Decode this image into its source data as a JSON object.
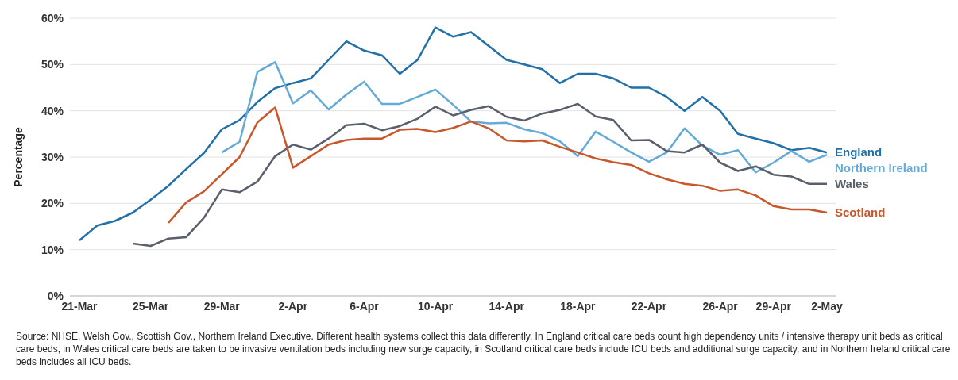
{
  "chart_data": {
    "type": "line",
    "ylabel": "Percentage",
    "categories": [
      "21-Mar",
      null,
      null,
      null,
      "25-Mar",
      null,
      null,
      null,
      "29-Mar",
      null,
      null,
      null,
      "2-Apr",
      null,
      null,
      null,
      "6-Apr",
      null,
      null,
      null,
      "10-Apr",
      null,
      null,
      null,
      "14-Apr",
      null,
      null,
      null,
      "18-Apr",
      null,
      null,
      null,
      "22-Apr",
      null,
      null,
      null,
      "26-Apr",
      null,
      null,
      "29-Apr",
      null,
      null,
      "2-May"
    ],
    "series": [
      {
        "name": "England",
        "color": "#2171a8",
        "values": [
          12,
          15.2,
          16.2,
          18,
          20.8,
          23.8,
          27.4,
          30.9,
          36,
          38,
          41.9,
          44.9,
          46,
          47,
          51,
          55,
          53,
          52,
          48,
          51,
          58,
          56,
          57,
          54,
          51,
          50,
          49,
          46,
          48,
          48,
          47,
          45,
          45,
          43,
          40,
          43,
          40,
          35,
          34,
          33,
          31.5,
          32,
          31
        ]
      },
      {
        "name": "Northern Ireland",
        "color": "#64aad6",
        "values": [
          null,
          null,
          null,
          null,
          null,
          null,
          null,
          null,
          31,
          33.3,
          48.4,
          50.5,
          41.6,
          44.4,
          40.3,
          43.5,
          46.3,
          41.5,
          41.5,
          43,
          44.6,
          41.3,
          37.7,
          37.3,
          37.4,
          36,
          35.2,
          33.4,
          30.2,
          35.5,
          33.3,
          31,
          29,
          31,
          36.2,
          32.5,
          30.5,
          31.5,
          26.7,
          28.8,
          31.3,
          29,
          30.5
        ]
      },
      {
        "name": "Wales",
        "color": "#5a606b",
        "values": [
          null,
          null,
          null,
          11.3,
          10.8,
          12.4,
          12.7,
          16.9,
          23,
          22.4,
          24.7,
          30.2,
          32.7,
          31.6,
          34,
          36.9,
          37.2,
          35.8,
          36.7,
          38.3,
          40.9,
          39,
          40.2,
          41,
          38.7,
          37.9,
          39.4,
          40.2,
          41.5,
          38.8,
          38,
          33.6,
          33.7,
          31.3,
          31,
          32.7,
          28.8,
          27,
          28,
          26.2,
          25.8,
          24.2,
          24.2
        ]
      },
      {
        "name": "Scotland",
        "color": "#c8582b",
        "values": [
          null,
          null,
          null,
          null,
          null,
          15.8,
          20.2,
          22.6,
          26.3,
          30,
          37.5,
          40.7,
          27.7,
          30.2,
          32.7,
          33.7,
          34,
          34,
          35.9,
          36.1,
          35.4,
          36.3,
          37.7,
          36.2,
          33.6,
          33.4,
          33.6,
          32.2,
          31,
          29.7,
          28.9,
          28.3,
          26.5,
          25.2,
          24.2,
          23.8,
          22.7,
          23,
          21.7,
          19.4,
          18.7,
          18.7,
          18
        ]
      }
    ],
    "ylim": [
      0,
      60
    ],
    "yticks": [
      {
        "value": 0,
        "label": "0%"
      },
      {
        "value": 10,
        "label": "10%"
      },
      {
        "value": 20,
        "label": "20%"
      },
      {
        "value": 30,
        "label": "30%"
      },
      {
        "value": 40,
        "label": "40%"
      },
      {
        "value": 50,
        "label": "50%"
      },
      {
        "value": 60,
        "label": "60%"
      }
    ],
    "grid": "y",
    "legend": false,
    "marker": "none",
    "line_style": "solid",
    "annotations": [
      "Source: NHSE, Welsh Gov., Scottish Gov., Northern Ireland Executive. Different health systems collect this data differently. In England critical care beds count high dependency units / intensive therapy unit beds as critical care beds, in Wales critical care beds are taken to be invasive ventilation beds including new surge capacity, in Scotland critical care beds include ICU beds and additional surge capacity, and in Northern Ireland critical care beds includes all ICU beds."
    ]
  }
}
